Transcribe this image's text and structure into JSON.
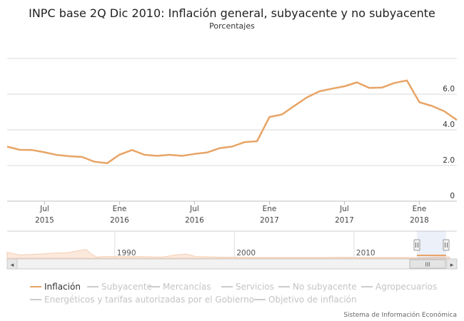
{
  "chart_data": {
    "type": "line",
    "title": "INPC base 2Q Dic 2010: Inflación general, subyacente y no subyacente",
    "subtitle": "Porcentajes",
    "series": [
      {
        "name": "Inflación",
        "color": "#e8a466",
        "x": [
          "2015-04",
          "2015-05",
          "2015-06",
          "2015-07",
          "2015-08",
          "2015-09",
          "2015-10",
          "2015-11",
          "2015-12",
          "2016-01",
          "2016-02",
          "2016-03",
          "2016-04",
          "2016-05",
          "2016-06",
          "2016-07",
          "2016-08",
          "2016-09",
          "2016-10",
          "2016-11",
          "2016-12",
          "2017-01",
          "2017-02",
          "2017-03",
          "2017-04",
          "2017-05",
          "2017-06",
          "2017-07",
          "2017-08",
          "2017-09",
          "2017-10",
          "2017-11",
          "2017-12",
          "2018-01",
          "2018-02",
          "2018-03",
          "2018-04"
        ],
        "values": [
          3.06,
          2.88,
          2.87,
          2.74,
          2.59,
          2.52,
          2.48,
          2.21,
          2.13,
          2.61,
          2.87,
          2.6,
          2.54,
          2.6,
          2.54,
          2.65,
          2.73,
          2.97,
          3.06,
          3.31,
          3.36,
          4.72,
          4.86,
          5.35,
          5.82,
          6.16,
          6.31,
          6.44,
          6.66,
          6.35,
          6.37,
          6.63,
          6.77,
          5.55,
          5.34,
          5.04,
          4.55
        ]
      }
    ],
    "y_ticks": [
      "0",
      "2.0",
      "4.0",
      "6.0"
    ],
    "ylim": [
      0,
      8
    ],
    "x_ticks": [
      {
        "date": "2015-07",
        "label": "Jul",
        "year": "2015"
      },
      {
        "date": "2016-01",
        "label": "Ene",
        "year": "2016"
      },
      {
        "date": "2016-07",
        "label": "Jul",
        "year": "2016"
      },
      {
        "date": "2017-01",
        "label": "Ene",
        "year": "2017"
      },
      {
        "date": "2017-07",
        "label": "Jul",
        "year": "2017"
      },
      {
        "date": "2018-01",
        "label": "Ene",
        "year": "2018"
      }
    ],
    "x_range": [
      "2015-04",
      "2018-04"
    ],
    "grid": true,
    "navigator": {
      "labels": [
        "1990",
        "2000",
        "2010"
      ],
      "range": [
        1981,
        2018.6
      ],
      "selected_range": [
        2015.2,
        2018.6
      ],
      "history": [
        [
          1981,
          0.22
        ],
        [
          1982,
          0.12
        ],
        [
          1983,
          0.14
        ],
        [
          1984,
          0.16
        ],
        [
          1985,
          0.19
        ],
        [
          1986,
          0.2
        ],
        [
          1987,
          0.28
        ],
        [
          1987.6,
          0.33
        ],
        [
          1988,
          0.17
        ],
        [
          1988.5,
          0.04
        ],
        [
          1989,
          0.06
        ],
        [
          1990,
          0.06
        ],
        [
          1991,
          0.06
        ],
        [
          1992,
          0.06
        ],
        [
          1993,
          0.05
        ],
        [
          1994,
          0.04
        ],
        [
          1995,
          0.12
        ],
        [
          1996,
          0.15
        ],
        [
          1996.8,
          0.06
        ],
        [
          1998,
          0.05
        ],
        [
          1999,
          0.04
        ],
        [
          2000,
          0.04
        ],
        [
          2002,
          0.03
        ],
        [
          2004,
          0.03
        ],
        [
          2006,
          0.03
        ],
        [
          2008,
          0.03
        ],
        [
          2009,
          0.04
        ],
        [
          2010,
          0.03
        ],
        [
          2012,
          0.03
        ],
        [
          2014,
          0.03
        ],
        [
          2015,
          0.025
        ],
        [
          2016,
          0.02
        ],
        [
          2017,
          0.045
        ],
        [
          2018,
          0.05
        ]
      ]
    }
  },
  "legend": {
    "items": [
      {
        "label": "Inflación",
        "color": "#e8a466",
        "active": true
      },
      {
        "label": "Subyacente",
        "color": "#cccccc",
        "active": false
      },
      {
        "label": "Mercancías",
        "color": "#cccccc",
        "active": false
      },
      {
        "label": "Servicios",
        "color": "#cccccc",
        "active": false
      },
      {
        "label": "No subyacente",
        "color": "#cccccc",
        "active": false
      },
      {
        "label": "Agropecuarios",
        "color": "#cccccc",
        "active": false
      },
      {
        "label": "Energéticos y tarifas autorizadas por el Gobierno",
        "color": "#cccccc",
        "active": false
      },
      {
        "label": "Objetivo de inflación",
        "color": "#cccccc",
        "active": false
      }
    ]
  },
  "credits": "Sistema de Información Económica",
  "scrollbar": {
    "left_arrow": "◂",
    "right_arrow": "▸",
    "grip": "III"
  }
}
